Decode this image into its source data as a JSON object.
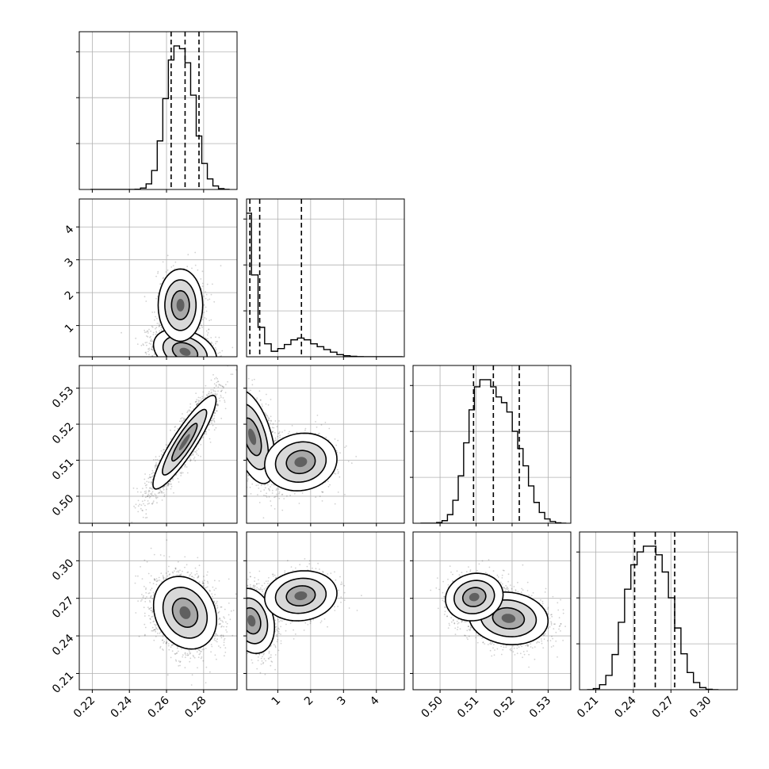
{
  "chart_data": {
    "type": "corner",
    "parameters": [
      {
        "index": 0,
        "range": [
          0.213,
          0.298
        ],
        "ticks": [
          0.22,
          0.24,
          0.26,
          0.28
        ],
        "tick_labels": [
          "0.22",
          "0.24",
          "0.26",
          "0.28"
        ]
      },
      {
        "index": 1,
        "range": [
          0.05,
          4.85
        ],
        "ticks": [
          1,
          2,
          3,
          4
        ],
        "tick_labels": [
          "1",
          "2",
          "3",
          "4"
        ]
      },
      {
        "index": 2,
        "range": [
          0.4925,
          0.5363
        ],
        "ticks": [
          0.5,
          0.51,
          0.52,
          0.53
        ],
        "tick_labels": [
          "0.50",
          "0.51",
          "0.52",
          "0.53"
        ]
      },
      {
        "index": 3,
        "range": [
          0.197,
          0.323
        ],
        "ticks": [
          0.21,
          0.24,
          0.27,
          0.3
        ],
        "tick_labels": [
          "0.21",
          "0.24",
          "0.27",
          "0.30"
        ]
      }
    ],
    "histograms": [
      {
        "param": 0,
        "quantiles": [
          0.2625,
          0.27,
          0.2775
        ],
        "bins": [
          0.2205,
          0.2235,
          0.2265,
          0.2295,
          0.2325,
          0.2355,
          0.2385,
          0.2415,
          0.2445,
          0.2475,
          0.2505,
          0.2535,
          0.2565,
          0.2595,
          0.2625,
          0.2655,
          0.2685,
          0.2715,
          0.2745,
          0.2775,
          0.2805,
          0.2835,
          0.2865,
          0.2895,
          0.2925
        ],
        "counts": [
          0,
          0,
          0,
          0,
          0,
          0,
          0,
          0,
          2,
          10,
          40,
          135,
          345,
          645,
          920,
          1020,
          1000,
          900,
          670,
          380,
          185,
          75,
          25,
          6,
          1
        ]
      },
      {
        "param": 1,
        "quantiles": [
          0.15,
          0.45,
          1.72
        ],
        "bins": [
          0.1,
          0.3,
          0.5,
          0.7,
          0.9,
          1.1,
          1.3,
          1.5,
          1.7,
          1.9,
          2.1,
          2.3,
          2.5,
          2.7,
          2.9,
          3.1,
          3.3,
          3.5,
          3.7,
          3.9,
          4.1,
          4.3,
          4.5,
          4.7
        ],
        "counts": [
          1000,
          570,
          205,
          90,
          38,
          57,
          85,
          118,
          130,
          118,
          90,
          70,
          50,
          32,
          15,
          7,
          3,
          1,
          0,
          0,
          0,
          0,
          0,
          0
        ]
      },
      {
        "param": 2,
        "quantiles": [
          0.5093,
          0.5148,
          0.522
        ],
        "bins": [
          0.4953,
          0.4968,
          0.4983,
          0.4998,
          0.5013,
          0.5028,
          0.5043,
          0.5058,
          0.5073,
          0.5088,
          0.5103,
          0.5118,
          0.5133,
          0.5148,
          0.5163,
          0.5178,
          0.5193,
          0.5208,
          0.5223,
          0.5238,
          0.5253,
          0.5268,
          0.5283,
          0.5298,
          0.5313,
          0.5328,
          0.5343
        ],
        "counts": [
          0,
          0,
          0,
          5,
          18,
          60,
          160,
          330,
          560,
          790,
          950,
          1000,
          1000,
          950,
          880,
          840,
          775,
          640,
          520,
          400,
          260,
          145,
          75,
          30,
          12,
          3,
          0
        ]
      },
      {
        "param": 3,
        "quantiles": [
          0.241,
          0.2575,
          0.273
        ],
        "bins": [
          0.2055,
          0.2105,
          0.2155,
          0.2205,
          0.2255,
          0.2305,
          0.2355,
          0.2405,
          0.2455,
          0.2505,
          0.2555,
          0.2605,
          0.2655,
          0.2705,
          0.2755,
          0.2805,
          0.2855,
          0.2905,
          0.2955,
          0.3005,
          0.3055
        ],
        "counts": [
          0,
          8,
          35,
          100,
          245,
          470,
          700,
          870,
          960,
          1000,
          1000,
          940,
          820,
          640,
          430,
          250,
          120,
          50,
          15,
          3,
          0
        ]
      }
    ],
    "pairs": [
      {
        "x_param": 0,
        "y_param": 1,
        "modes": [
          {
            "cx": 0.27,
            "cy": 0.2,
            "sx": 0.0085,
            "sy": 0.35,
            "rho": -0.3,
            "w": 0.7
          },
          {
            "cx": 0.2675,
            "cy": 1.62,
            "sx": 0.006,
            "sy": 0.55,
            "rho": 0.0,
            "w": 0.3
          }
        ]
      },
      {
        "x_param": 0,
        "y_param": 2,
        "modes": [
          {
            "cx": 0.2697,
            "cy": 0.515,
            "sx": 0.0085,
            "sy": 0.0065,
            "rho": 0.9,
            "w": 1.0
          }
        ]
      },
      {
        "x_param": 0,
        "y_param": 3,
        "modes": [
          {
            "cx": 0.27,
            "cy": 0.2585,
            "sx": 0.0085,
            "sy": 0.0145,
            "rho": -0.2,
            "w": 1.0
          }
        ]
      },
      {
        "x_param": 1,
        "y_param": 2,
        "modes": [
          {
            "cx": 0.22,
            "cy": 0.5165,
            "sx": 0.35,
            "sy": 0.0065,
            "rho": -0.5,
            "w": 0.7
          },
          {
            "cx": 1.7,
            "cy": 0.5095,
            "sx": 0.55,
            "sy": 0.004,
            "rho": 0.1,
            "w": 0.3
          }
        ]
      },
      {
        "x_param": 1,
        "y_param": 3,
        "modes": [
          {
            "cx": 0.2,
            "cy": 0.252,
            "sx": 0.35,
            "sy": 0.013,
            "rho": -0.2,
            "w": 0.7
          },
          {
            "cx": 1.7,
            "cy": 0.272,
            "sx": 0.55,
            "sy": 0.01,
            "rho": 0.1,
            "w": 0.3
          }
        ]
      },
      {
        "x_param": 2,
        "y_param": 3,
        "modes": [
          {
            "cx": 0.519,
            "cy": 0.254,
            "sx": 0.0055,
            "sy": 0.0105,
            "rho": -0.1,
            "w": 0.7
          },
          {
            "cx": 0.5095,
            "cy": 0.271,
            "sx": 0.004,
            "sy": 0.0095,
            "rho": 0.1,
            "w": 0.3
          }
        ]
      }
    ],
    "grid": true,
    "title": "",
    "xlabel": "",
    "ylabel": ""
  }
}
